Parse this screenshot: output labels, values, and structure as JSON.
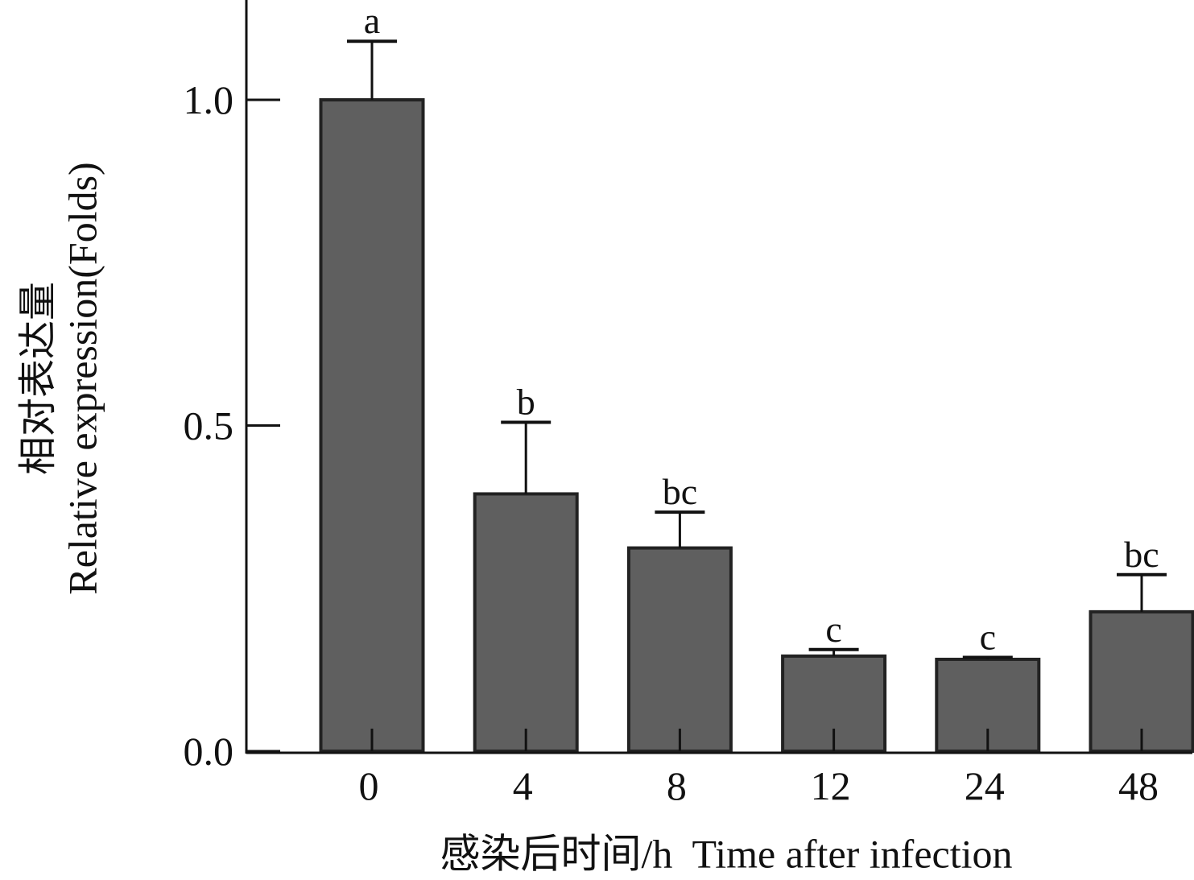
{
  "chart_data": {
    "type": "bar",
    "categories": [
      "0",
      "4",
      "8",
      "12",
      "24",
      "48"
    ],
    "values": [
      1.0,
      0.395,
      0.312,
      0.146,
      0.141,
      0.214
    ],
    "errors": [
      0.09,
      0.11,
      0.055,
      0.01,
      0.003,
      0.057
    ],
    "significance": [
      "a",
      "b",
      "bc",
      "c",
      "c",
      "bc"
    ],
    "ylim": [
      0,
      1.15
    ],
    "yticks": [
      0.0,
      0.5,
      1.0
    ],
    "ytick_labels": [
      "0.0",
      "0.5",
      "1.0"
    ],
    "ylabel_cn": "相对表达量",
    "ylabel_en": "Relative expression(Folds)",
    "xlabel": "感染后时间/h  Time after infection",
    "bar_color": "#5f5f5f",
    "edge_color": "#222222",
    "grid": false
  }
}
